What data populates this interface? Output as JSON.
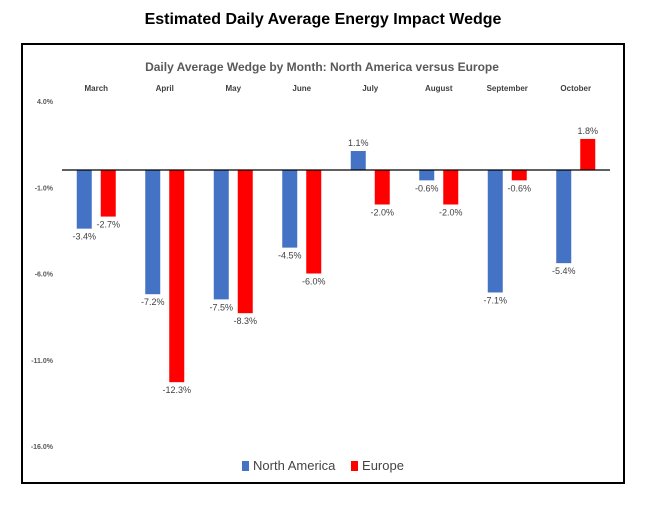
{
  "page": {
    "title": "Estimated Daily Average Energy Impact Wedge"
  },
  "chart_data": {
    "type": "bar",
    "title": "Daily Average Wedge by Month: North America versus Europe",
    "categories": [
      "March",
      "April",
      "May",
      "June",
      "July",
      "August",
      "September",
      "October"
    ],
    "series": [
      {
        "name": "North America",
        "values": [
          -3.4,
          -7.2,
          -7.5,
          -4.5,
          1.1,
          -0.6,
          -7.1,
          -5.4
        ],
        "color": "#4472C4"
      },
      {
        "name": "Europe",
        "values": [
          -2.7,
          -12.3,
          -8.3,
          -6.0,
          -2.0,
          -2.0,
          -0.6,
          1.8
        ],
        "color": "#FF0000"
      }
    ],
    "data_labels": [
      [
        "-3.4%",
        "-7.2%",
        "-7.5%",
        "-4.5%",
        "1.1%",
        "-0.6%",
        "-7.1%",
        "-5.4%"
      ],
      [
        "-2.7%",
        "-12.3%",
        "-8.3%",
        "-6.0%",
        "-2.0%",
        "-2.0%",
        "-0.6%",
        "1.8%"
      ]
    ],
    "y_ticks": [
      4.0,
      -1.0,
      -6.0,
      -11.0,
      -16.0
    ],
    "y_tick_labels": [
      "4.0%",
      "-1.0%",
      "-6.0%",
      "-11.0%",
      "-16.0%"
    ],
    "ylim": [
      -16.0,
      4.0
    ],
    "xlabel": "",
    "ylabel": "",
    "grid": false,
    "legend_position": "bottom",
    "category_label_position": "top"
  }
}
